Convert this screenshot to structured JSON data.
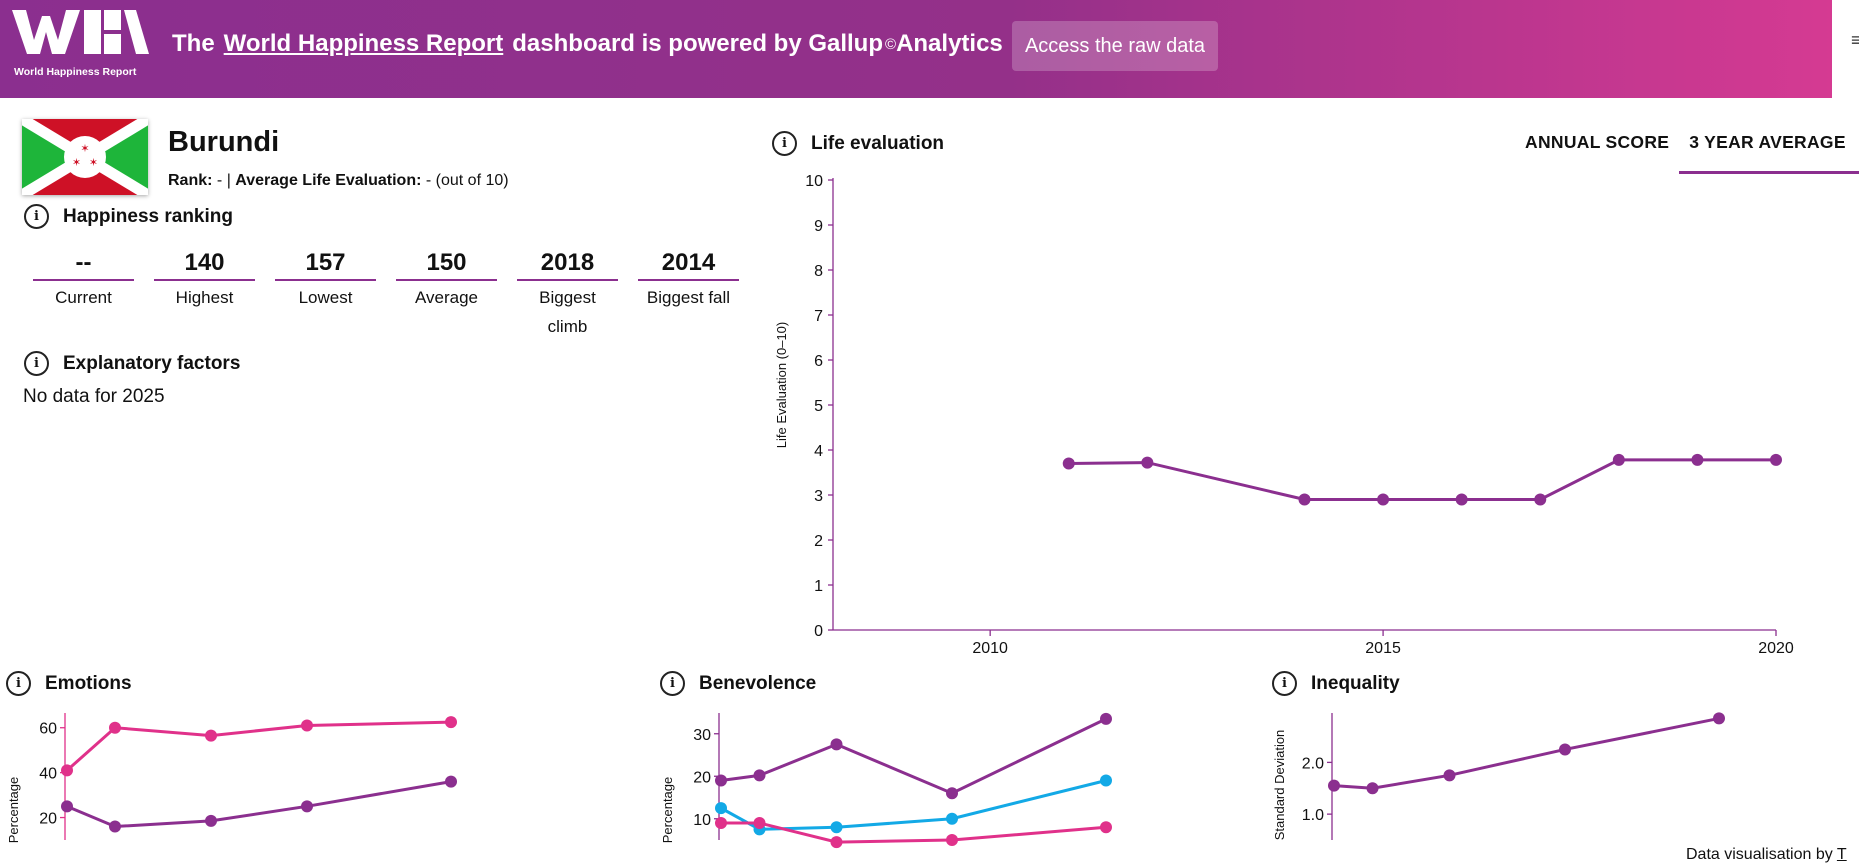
{
  "header": {
    "logo_text": "World Happiness Report",
    "headline_pre": "The",
    "headline_link": "World Happiness Report",
    "headline_post": "dashboard is powered by Gallup",
    "headline_sup": "©",
    "headline_end": "Analytics",
    "raw_data_button": "Access the raw data"
  },
  "country": {
    "name": "Burundi",
    "rank_label": "Rank:",
    "rank_value": "-",
    "separator": "|",
    "avg_label": "Average Life Evaluation:",
    "avg_value": "- (out of 10)"
  },
  "happiness_ranking": {
    "title": "Happiness ranking",
    "stats": [
      {
        "value": "--",
        "label": "Current"
      },
      {
        "value": "140",
        "label": "Highest"
      },
      {
        "value": "157",
        "label": "Lowest"
      },
      {
        "value": "150",
        "label": "Average"
      },
      {
        "value": "2018",
        "label": "Biggest climb"
      },
      {
        "value": "2014",
        "label": "Biggest fall"
      }
    ]
  },
  "explanatory_factors": {
    "title": "Explanatory factors",
    "message": "No data for 2025"
  },
  "life_evaluation": {
    "title": "Life evaluation",
    "tabs": [
      "ANNUAL SCORE",
      "3 YEAR AVERAGE"
    ],
    "active_tab": 1
  },
  "emotions": {
    "title": "Emotions"
  },
  "benevolence": {
    "title": "Benevolence"
  },
  "inequality": {
    "title": "Inequality"
  },
  "footer": {
    "credit_prefix": "Data visualisation by",
    "credit_link": "T"
  },
  "colors": {
    "accent": "#8b2f8f",
    "pink": "#e0318a",
    "blue": "#13a9e6"
  },
  "chart_data": [
    {
      "type": "line",
      "ylabel": "Life Evaluation (0–10)",
      "ylim": [
        0,
        10
      ],
      "yticks": [
        "0",
        "1",
        "2",
        "3",
        "4",
        "5",
        "6",
        "7",
        "8",
        "9",
        "10"
      ],
      "xlim": [
        2008,
        2020
      ],
      "xticks": [
        "2010",
        "2015",
        "2020"
      ],
      "series": [
        {
          "x": [
            2011,
            2012,
            2014,
            2015,
            2016,
            2017,
            2018,
            2019,
            2020
          ],
          "y": [
            3.7,
            3.72,
            2.9,
            2.9,
            2.9,
            2.9,
            3.78,
            3.78,
            3.78
          ]
        }
      ]
    },
    {
      "type": "line",
      "ylabel": "Percentage",
      "yticks": [
        "20",
        "40",
        "60"
      ],
      "ylim": [
        10,
        63
      ],
      "series": [
        {
          "color": "pink",
          "x": [
            0,
            1,
            3,
            5,
            8
          ],
          "y": [
            41,
            60,
            56.5,
            61,
            62.5
          ]
        },
        {
          "color": "purple",
          "x": [
            0,
            1,
            3,
            5,
            8
          ],
          "y": [
            25,
            16,
            18.5,
            25,
            36
          ]
        }
      ]
    },
    {
      "type": "line",
      "ylabel": "Percentage",
      "yticks": [
        "10",
        "20",
        "30"
      ],
      "ylim": [
        5,
        33
      ],
      "series": [
        {
          "color": "purple",
          "x": [
            0,
            1,
            3,
            6,
            10
          ],
          "y": [
            19,
            20.2,
            27.5,
            16,
            33.5
          ]
        },
        {
          "color": "blue",
          "x": [
            0,
            1,
            3,
            6,
            10
          ],
          "y": [
            12.5,
            7.5,
            8,
            10,
            19
          ]
        },
        {
          "color": "pink",
          "x": [
            0,
            1,
            3,
            6,
            10
          ],
          "y": [
            9,
            9,
            4.5,
            5,
            8
          ]
        }
      ]
    },
    {
      "type": "line",
      "ylabel": "Standard Deviation",
      "yticks": [
        "1.0",
        "2.0"
      ],
      "ylim": [
        0.5,
        2.8
      ],
      "series": [
        {
          "color": "purple",
          "x": [
            0,
            1,
            3,
            6,
            10
          ],
          "y": [
            1.55,
            1.5,
            1.75,
            2.25,
            2.85
          ]
        }
      ]
    }
  ]
}
